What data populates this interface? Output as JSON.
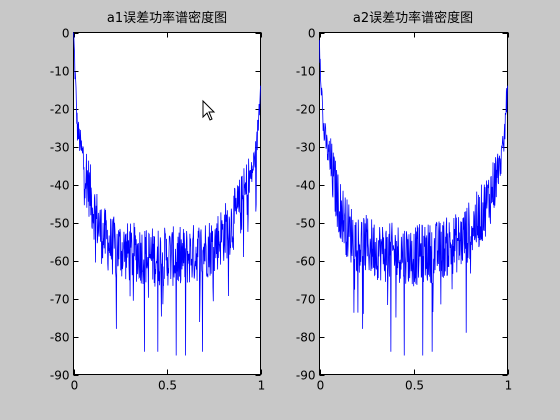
{
  "chart_data": [
    {
      "type": "line",
      "title": "a1误差功率谱密度图",
      "xlim": [
        0,
        1
      ],
      "ylim": [
        -90,
        0
      ],
      "xticks": [
        0,
        0.5,
        1
      ],
      "yticks": [
        0,
        -10,
        -20,
        -30,
        -40,
        -50,
        -60,
        -70,
        -80,
        -90
      ],
      "grid": false,
      "color": "#0000ff",
      "series": [
        {
          "x": [
            0,
            0.02,
            0.05,
            0.08,
            0.1,
            0.13,
            0.15,
            0.2,
            0.25,
            0.3,
            0.35,
            0.4,
            0.45,
            0.5,
            0.55,
            0.6,
            0.65,
            0.7,
            0.75,
            0.8,
            0.85,
            0.87,
            0.9,
            0.92,
            0.95,
            0.98,
            1
          ],
          "y": [
            0,
            -25,
            -33,
            -40,
            -45,
            -50,
            -53,
            -56,
            -57,
            -58,
            -58,
            -59,
            -59,
            -59,
            -59,
            -59,
            -58,
            -57,
            -56,
            -53,
            -50,
            -48,
            -45,
            -42,
            -38,
            -30,
            -14
          ],
          "dips": [
            {
              "x": 0.23,
              "y": -78
            },
            {
              "x": 0.38,
              "y": -84
            },
            {
              "x": 0.45,
              "y": -84
            },
            {
              "x": 0.55,
              "y": -85
            },
            {
              "x": 0.6,
              "y": -85
            },
            {
              "x": 0.69,
              "y": -84
            }
          ]
        }
      ]
    },
    {
      "type": "line",
      "title": "a2误差功率谱密度图",
      "xlim": [
        0,
        1
      ],
      "ylim": [
        -90,
        0
      ],
      "xticks": [
        0,
        0.5,
        1
      ],
      "yticks": [
        0,
        -10,
        -20,
        -30,
        -40,
        -50,
        -60,
        -70,
        -80,
        -90
      ],
      "grid": false,
      "color": "#0000ff",
      "series": [
        {
          "x": [
            0,
            0.02,
            0.05,
            0.08,
            0.1,
            0.13,
            0.15,
            0.2,
            0.25,
            0.3,
            0.35,
            0.4,
            0.45,
            0.5,
            0.55,
            0.6,
            0.65,
            0.7,
            0.75,
            0.8,
            0.85,
            0.87,
            0.9,
            0.92,
            0.95,
            0.98,
            1
          ],
          "y": [
            -2,
            -25,
            -33,
            -40,
            -45,
            -49,
            -52,
            -55,
            -56,
            -57,
            -58,
            -58,
            -58,
            -59,
            -58,
            -58,
            -57,
            -56,
            -55,
            -52,
            -49,
            -47,
            -44,
            -41,
            -37,
            -30,
            -14
          ],
          "dips": [
            {
              "x": 0.23,
              "y": -78
            },
            {
              "x": 0.38,
              "y": -84
            },
            {
              "x": 0.45,
              "y": -85
            },
            {
              "x": 0.55,
              "y": -85
            },
            {
              "x": 0.6,
              "y": -84
            },
            {
              "x": 0.78,
              "y": -79
            }
          ]
        }
      ]
    }
  ]
}
